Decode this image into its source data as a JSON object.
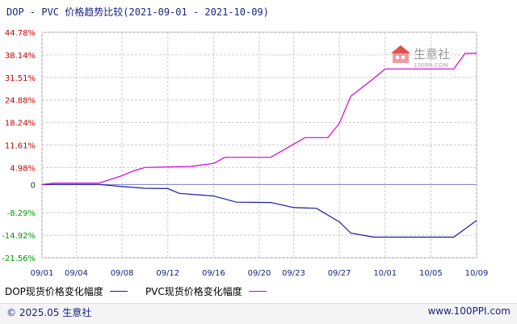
{
  "title": "DOP - PVC 价格趋势比较(2021-09-01 - 2021-10-09)",
  "watermark": {
    "text": "生意社",
    "subtext": "100PPI.COM"
  },
  "chart_data": {
    "type": "line",
    "xlabel": "",
    "ylabel": "",
    "x_ticks": [
      "09/01",
      "09/04",
      "09/08",
      "09/12",
      "09/16",
      "09/20",
      "09/23",
      "09/27",
      "10/01",
      "10/05",
      "10/09"
    ],
    "y_ticks": [
      "44.78%",
      "38.14%",
      "31.51%",
      "24.88%",
      "18.24%",
      "11.61%",
      "4.98%",
      "0",
      "-8.29%",
      "-14.92%",
      "-21.56%"
    ],
    "y_tick_values": [
      44.78,
      38.14,
      31.51,
      24.88,
      18.24,
      11.61,
      4.98,
      0,
      -8.29,
      -14.92,
      -21.56
    ],
    "y_range": [
      -21.56,
      44.78
    ],
    "x_range": [
      "09/01",
      "10/09"
    ],
    "grid": true,
    "legend_position": "bottom-left",
    "series": [
      {
        "name": "DOP现货价格变化幅度",
        "color": "#1a1aa6",
        "points": [
          {
            "x": "09/01",
            "y": 0.0
          },
          {
            "x": "09/06",
            "y": 0.0
          },
          {
            "x": "09/08",
            "y": -0.6
          },
          {
            "x": "09/10",
            "y": -1.1
          },
          {
            "x": "09/12",
            "y": -1.2
          },
          {
            "x": "09/13",
            "y": -2.6
          },
          {
            "x": "09/16",
            "y": -3.4
          },
          {
            "x": "09/18",
            "y": -5.2
          },
          {
            "x": "09/21",
            "y": -5.3
          },
          {
            "x": "09/23",
            "y": -6.8
          },
          {
            "x": "09/25",
            "y": -7.0
          },
          {
            "x": "09/27",
            "y": -11.0
          },
          {
            "x": "09/28",
            "y": -14.3
          },
          {
            "x": "09/30",
            "y": -15.5
          },
          {
            "x": "10/07",
            "y": -15.5
          },
          {
            "x": "10/09",
            "y": -10.6
          }
        ]
      },
      {
        "name": "PVC现货价格变化幅度",
        "color": "#d400d4",
        "points": [
          {
            "x": "09/01",
            "y": 0.0
          },
          {
            "x": "09/02",
            "y": 0.4
          },
          {
            "x": "09/06",
            "y": 0.4
          },
          {
            "x": "09/08",
            "y": 2.6
          },
          {
            "x": "09/09",
            "y": 4.0
          },
          {
            "x": "09/10",
            "y": 5.0
          },
          {
            "x": "09/14",
            "y": 5.3
          },
          {
            "x": "09/16",
            "y": 6.2
          },
          {
            "x": "09/17",
            "y": 8.0
          },
          {
            "x": "09/21",
            "y": 8.0
          },
          {
            "x": "09/24",
            "y": 13.8
          },
          {
            "x": "09/26",
            "y": 13.8
          },
          {
            "x": "09/27",
            "y": 18.0
          },
          {
            "x": "09/28",
            "y": 26.0
          },
          {
            "x": "09/30",
            "y": 31.2
          },
          {
            "x": "10/01",
            "y": 34.0
          },
          {
            "x": "10/07",
            "y": 34.0
          },
          {
            "x": "10/08",
            "y": 38.6
          },
          {
            "x": "10/09",
            "y": 38.6
          }
        ]
      }
    ]
  },
  "footer": {
    "copyright": "© 2025.05 生意社",
    "site": "www.100PPI.com"
  }
}
